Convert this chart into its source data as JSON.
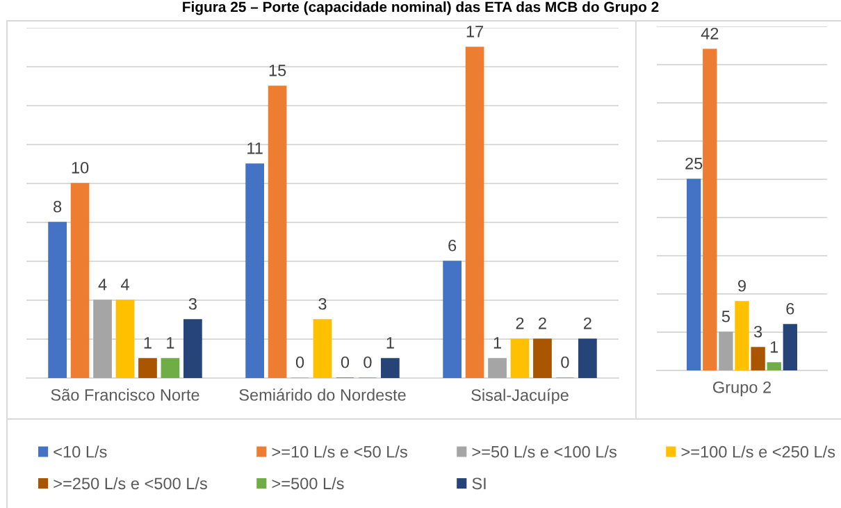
{
  "chart_data": [
    {
      "type": "bar",
      "title": "Figura 25 – Porte (capacidade nominal) das ETA das MCB do Grupo 2",
      "categories": [
        "São Francisco Norte",
        "Semiárido do Nordeste",
        "Sisal-Jacuípe"
      ],
      "series": [
        {
          "name": "<10 L/s",
          "color": "#4472c4",
          "values": [
            8,
            11,
            6
          ]
        },
        {
          "name": ">=10 L/s e <50 L/s",
          "color": "#ed7d31",
          "values": [
            10,
            15,
            17
          ]
        },
        {
          "name": ">=50 L/s e <100 L/s",
          "color": "#a5a5a5",
          "values": [
            4,
            0,
            1
          ]
        },
        {
          "name": ">=100 L/s e <250 L/s",
          "color": "#ffc000",
          "values": [
            4,
            3,
            2
          ]
        },
        {
          "name": ">=250 L/s e <500 L/s",
          "color": "#aa5500",
          "values": [
            1,
            0,
            2
          ]
        },
        {
          "name": ">=500 L/s",
          "color": "#70ad47",
          "values": [
            1,
            0,
            0
          ]
        },
        {
          "name": "SI",
          "color": "#264478",
          "values": [
            3,
            1,
            2
          ]
        }
      ],
      "ylim": [
        0,
        18
      ],
      "yticks": [
        {
          "value": 0,
          "label": null
        },
        {
          "value": 2,
          "label": null
        },
        {
          "value": 4,
          "label": null
        },
        {
          "value": 6,
          "label": null
        },
        {
          "value": 8,
          "label": null
        },
        {
          "value": 10,
          "label": null
        },
        {
          "value": 12,
          "label": null
        },
        {
          "value": 14,
          "label": null
        },
        {
          "value": 16,
          "label": null
        },
        {
          "value": 18,
          "label": null
        }
      ],
      "grid": "y",
      "legend": "bottom",
      "data_labels": true,
      "tick_labels": "x"
    },
    {
      "type": "bar",
      "categories": [
        "Grupo 2"
      ],
      "series": [
        {
          "color": "#4472c4",
          "values": [
            25
          ]
        },
        {
          "color": "#ed7d31",
          "values": [
            42
          ]
        },
        {
          "color": "#a5a5a5",
          "values": [
            5
          ]
        },
        {
          "color": "#ffc000",
          "values": [
            9
          ]
        },
        {
          "color": "#aa5500",
          "values": [
            3
          ]
        },
        {
          "color": "#70ad47",
          "values": [
            1
          ]
        },
        {
          "color": "#264478",
          "values": [
            6
          ]
        }
      ],
      "ylim": [
        0,
        45
      ],
      "yticks": [
        {
          "value": 0,
          "label": null
        },
        {
          "value": 5,
          "label": null
        },
        {
          "value": 10,
          "label": null
        },
        {
          "value": 15,
          "label": null
        },
        {
          "value": 20,
          "label": null
        },
        {
          "value": 25,
          "label": null
        },
        {
          "value": 30,
          "label": null
        },
        {
          "value": 35,
          "label": null
        },
        {
          "value": 40,
          "label": null
        },
        {
          "value": 45,
          "label": null
        }
      ],
      "grid": "y",
      "data_labels": true,
      "tick_labels": "x"
    }
  ]
}
